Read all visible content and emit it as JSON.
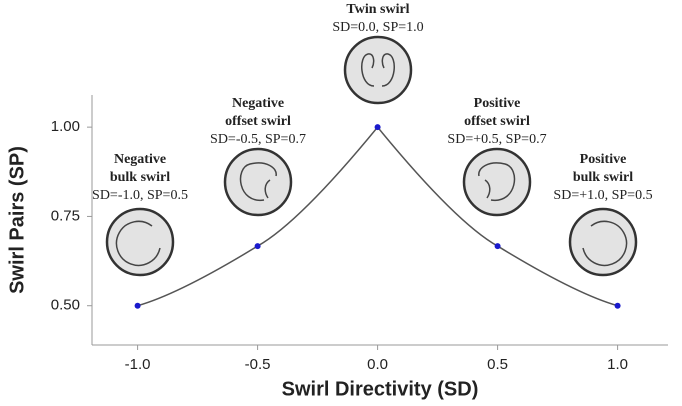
{
  "chart_data": {
    "type": "line",
    "x_label": "Swirl Directivity (SD)",
    "y_label": "Swirl Pairs (SP)",
    "x": [
      -1.0,
      -0.5,
      0.0,
      0.5,
      1.0
    ],
    "series": [
      {
        "color": "#555555",
        "marker_color": "#1a1acc",
        "values": [
          0.5,
          0.667,
          1.0,
          0.667,
          0.5
        ]
      }
    ],
    "xlim": [
      -1.19,
      1.21
    ],
    "ylim": [
      0.39,
      1.09
    ],
    "xticks": [
      {
        "value": -1.0,
        "label": "-1.0"
      },
      {
        "value": -0.5,
        "label": "-0.5"
      },
      {
        "value": 0.0,
        "label": "0.0"
      },
      {
        "value": 0.5,
        "label": "0.5"
      },
      {
        "value": 1.0,
        "label": "1.0"
      }
    ],
    "yticks": [
      {
        "value": 0.5,
        "label": "0.50"
      },
      {
        "value": 0.75,
        "label": "0.75"
      },
      {
        "value": 1.0,
        "label": "1.00"
      }
    ],
    "annotations": [
      {
        "title": [
          "Twin swirl"
        ],
        "text": "SD=0.0, SP=1.0"
      },
      {
        "title": [
          "Negative",
          "offset swirl"
        ],
        "text": "SD=-0.5, SP=0.7"
      },
      {
        "title": [
          "Positive",
          "offset swirl"
        ],
        "text": "SD=+0.5, SP=0.7"
      },
      {
        "title": [
          "Negative",
          "bulk swirl"
        ],
        "text": "SD=-1.0, SP=0.5"
      },
      {
        "title": [
          "Positive",
          "bulk swirl"
        ],
        "text": "SD=+1.0, SP=0.5"
      }
    ]
  }
}
